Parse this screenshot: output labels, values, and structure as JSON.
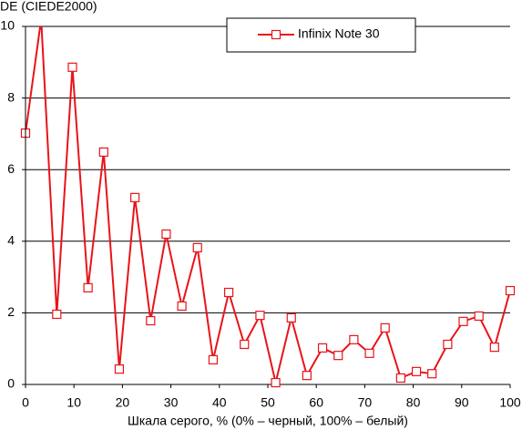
{
  "chart_data": {
    "type": "line",
    "title": "DE (CIEDE2000)",
    "xlabel": "Шкала серого, % (0% – черный, 100% – белый)",
    "x": [
      0,
      3.23,
      6.45,
      9.68,
      12.9,
      16.13,
      19.35,
      22.58,
      25.81,
      29.03,
      32.26,
      35.48,
      38.71,
      41.94,
      45.16,
      48.39,
      51.61,
      54.84,
      58.06,
      61.29,
      64.52,
      67.74,
      70.97,
      74.19,
      77.42,
      80.65,
      83.87,
      87.1,
      90.32,
      93.55,
      96.77,
      100
    ],
    "series": [
      {
        "name": "Infinix Note 30",
        "color": "#e8141a",
        "values": [
          7.02,
          10.2,
          1.96,
          8.86,
          2.7,
          6.49,
          0.43,
          5.22,
          1.78,
          4.2,
          2.19,
          3.82,
          0.69,
          2.57,
          1.12,
          1.93,
          0.05,
          1.86,
          0.25,
          1.02,
          0.81,
          1.25,
          0.87,
          1.58,
          0.18,
          0.36,
          0.3,
          1.12,
          1.76,
          1.91,
          1.04,
          2.62
        ]
      }
    ],
    "xlim": [
      0,
      100
    ],
    "xticks": [
      0,
      10,
      20,
      30,
      40,
      50,
      60,
      70,
      80,
      90,
      100
    ],
    "ylim": [
      0,
      10
    ],
    "yticks": [
      0,
      2,
      4,
      6,
      8,
      10
    ],
    "grid": true,
    "legend": "top"
  }
}
